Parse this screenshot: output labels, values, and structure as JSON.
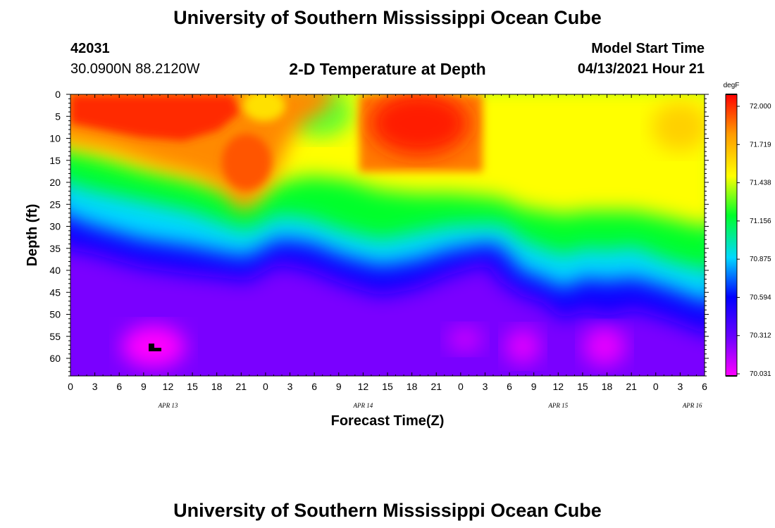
{
  "title_top": "University of Southern Mississippi Ocean Cube",
  "title_bottom": "University of Southern Mississippi Ocean Cube",
  "station_id": "42031",
  "location": "30.0900N  88.2120W",
  "plot_title": "2-D Temperature at Depth",
  "model_label": "Model Start Time",
  "model_time": "04/13/2021 Hour 21",
  "chart_data": {
    "type": "heatmap",
    "title": "2-D Temperature at Depth",
    "xlabel": "Forecast Time(Z)",
    "ylabel": "Depth (ft)",
    "x_unit": "forecast hour offset from 00Z Apr 13",
    "x_range": [
      0,
      78
    ],
    "x_tick_labels": [
      "0",
      "3",
      "6",
      "9",
      "12",
      "15",
      "18",
      "21",
      "0",
      "3",
      "6",
      "9",
      "12",
      "15",
      "18",
      "21",
      "0",
      "3",
      "6",
      "9",
      "12",
      "15",
      "18",
      "21",
      "0",
      "3",
      "6"
    ],
    "date_labels": [
      "APR 13",
      "APR 14",
      "APR 15",
      "APR 16"
    ],
    "y_range": [
      0,
      64
    ],
    "y_ticks": [
      0,
      5,
      10,
      15,
      20,
      25,
      30,
      35,
      40,
      45,
      50,
      55,
      60
    ],
    "colorbar": {
      "unit": "degF",
      "ticks": [
        "72.000",
        "71.719",
        "71.438",
        "71.156",
        "70.875",
        "70.594",
        "70.312",
        "70.031"
      ],
      "range": [
        70.031,
        72.0
      ],
      "colors": [
        "#ff00ff",
        "#6a00ff",
        "#0000ff",
        "#00d8ff",
        "#00ff2a",
        "#ffff00",
        "#ff9a00",
        "#ff0000"
      ]
    },
    "missing_marker": {
      "x_hours": 10.5,
      "depth_ft": 58
    },
    "surface_lowtemp_region_ft": [
      {
        "hour": 0,
        "depth": 9
      },
      {
        "hour": 4,
        "depth": 12
      },
      {
        "hour": 8,
        "depth": 16
      },
      {
        "hour": 12,
        "depth": 20
      },
      {
        "hour": 16,
        "depth": 22
      },
      {
        "hour": 20,
        "depth": 27
      },
      {
        "hour": 21,
        "depth": 28
      }
    ],
    "gradient_top_depth_ft": [
      {
        "hour": 0,
        "depth": 21
      },
      {
        "hour": 6,
        "depth": 26
      },
      {
        "hour": 12,
        "depth": 30
      },
      {
        "hour": 18,
        "depth": 31
      },
      {
        "hour": 21,
        "depth": 33
      },
      {
        "hour": 22,
        "depth": 30
      },
      {
        "hour": 27,
        "depth": 28
      },
      {
        "hour": 33,
        "depth": 29
      },
      {
        "hour": 39,
        "depth": 32
      },
      {
        "hour": 45,
        "depth": 33
      },
      {
        "hour": 51,
        "depth": 30
      },
      {
        "hour": 54,
        "depth": 31
      },
      {
        "hour": 57,
        "depth": 38
      },
      {
        "hour": 60,
        "depth": 39
      },
      {
        "hour": 63,
        "depth": 36
      },
      {
        "hour": 66,
        "depth": 34
      },
      {
        "hour": 69,
        "depth": 36
      },
      {
        "hour": 72,
        "depth": 39
      },
      {
        "hour": 75,
        "depth": 40
      },
      {
        "hour": 78,
        "depth": 44
      }
    ],
    "warm_cores": [
      {
        "hour_start": 0,
        "hour_end": 12,
        "depth_start": 0,
        "depth_end": 9,
        "temp": 72.0
      },
      {
        "hour_start": 14,
        "hour_end": 24,
        "depth_start": 8,
        "depth_end": 22,
        "temp": 71.8
      },
      {
        "hour_start": 36,
        "hour_end": 50,
        "depth_start": 0,
        "depth_end": 15,
        "temp": 72.0
      }
    ]
  }
}
